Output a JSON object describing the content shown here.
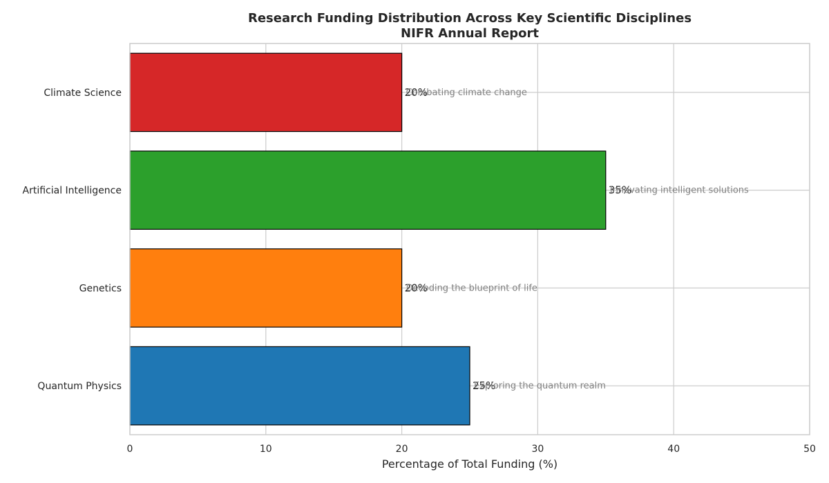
{
  "chart_data": {
    "type": "bar",
    "orientation": "horizontal",
    "title_lines": [
      "Research Funding Distribution Across Key Scientific Disciplines",
      "NIFR Annual Report"
    ],
    "xlabel": "Percentage of Total Funding (%)",
    "ylabel": "",
    "xlim": [
      0,
      50
    ],
    "xticks": [
      0,
      10,
      20,
      30,
      40,
      50
    ],
    "grid": true,
    "categories": [
      "Quantum Physics",
      "Genetics",
      "Artificial Intelligence",
      "Climate Science"
    ],
    "values": [
      25,
      20,
      35,
      20
    ],
    "value_labels": [
      "25%",
      "20%",
      "35%",
      "20%"
    ],
    "annotations": [
      "Exploring the quantum realm",
      "Decoding the blueprint of life",
      "Innovating intelligent solutions",
      "Combating climate change"
    ],
    "colors": [
      "#1f77b4",
      "#ff7f0e",
      "#2ca02c",
      "#d62728"
    ],
    "edge_color": "#000000",
    "annotation_color": "#808080",
    "grid_color": "#cccccc"
  }
}
